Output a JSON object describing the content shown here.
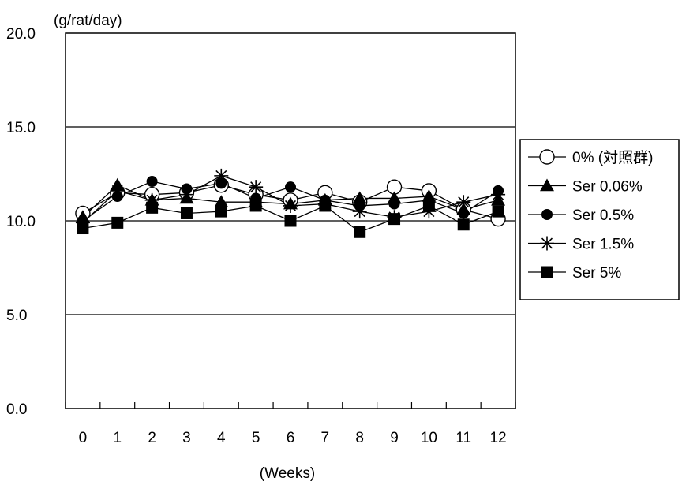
{
  "chart_data": {
    "type": "line",
    "title": "",
    "ylabel": "(g/rat/day)",
    "xlabel": "(Weeks)",
    "ylim": [
      0,
      20
    ],
    "yticks": [
      "0.0",
      "5.0",
      "10.0",
      "15.0",
      "20.0"
    ],
    "ytick_values": [
      0,
      5,
      10,
      15,
      20
    ],
    "gridlines": [
      5,
      10,
      15
    ],
    "categories": [
      "0",
      "1",
      "2",
      "3",
      "4",
      "5",
      "6",
      "7",
      "8",
      "9",
      "10",
      "11",
      "12"
    ],
    "legend_position": "right",
    "series": [
      {
        "name": "0% (対照群)",
        "marker": "open-circle",
        "values": [
          10.4,
          11.5,
          11.4,
          11.5,
          11.9,
          11.4,
          11.1,
          11.5,
          11.0,
          11.8,
          11.6,
          10.6,
          10.1
        ]
      },
      {
        "name": "Ser 0.06%",
        "marker": "triangle",
        "values": [
          10.2,
          11.9,
          11.1,
          11.2,
          11.0,
          11.0,
          10.9,
          11.1,
          11.2,
          11.2,
          11.3,
          10.6,
          11.1
        ]
      },
      {
        "name": "Ser 0.5%",
        "marker": "filled-circle",
        "values": [
          10.0,
          11.3,
          12.1,
          11.7,
          12.0,
          11.2,
          11.8,
          11.1,
          10.8,
          10.9,
          11.1,
          10.4,
          11.6
        ]
      },
      {
        "name": "Ser 1.5%",
        "marker": "asterisk",
        "values": [
          9.9,
          11.6,
          11.1,
          11.4,
          12.4,
          11.8,
          10.8,
          10.9,
          10.5,
          10.2,
          10.5,
          11.0,
          11.4
        ]
      },
      {
        "name": "Ser 5%",
        "marker": "filled-square",
        "values": [
          9.6,
          9.9,
          10.7,
          10.4,
          10.5,
          10.8,
          10.0,
          10.8,
          9.4,
          10.1,
          10.8,
          9.8,
          10.5
        ]
      }
    ]
  }
}
